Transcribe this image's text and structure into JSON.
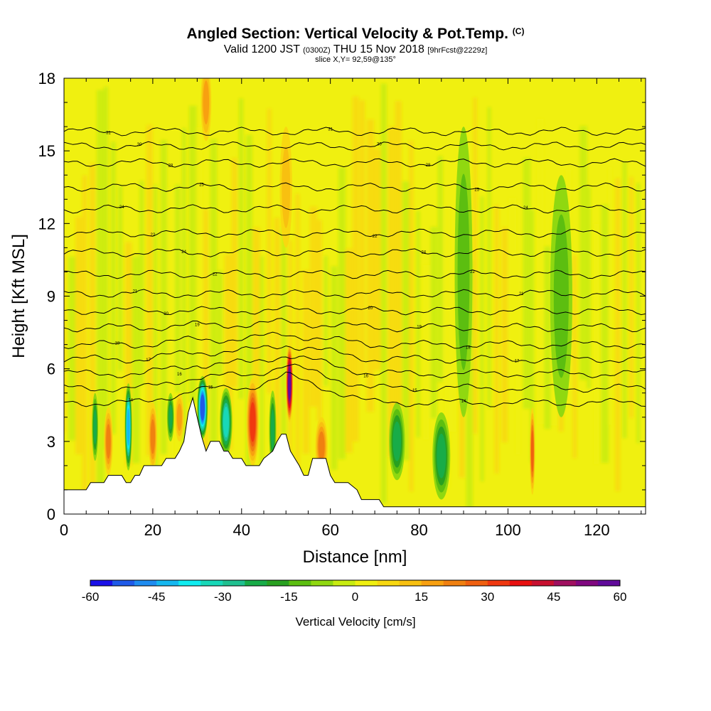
{
  "chart_data": {
    "type": "heatmap",
    "title": {
      "main": "Angled Section: Vertical Velocity & Pot.Temp.",
      "main_suffix": "(C)",
      "valid_a": "Valid 1200 JST",
      "valid_b": "(0300Z)",
      "valid_c": "THU 15 Nov 2018",
      "valid_d": "[9hrFcst@2229z]",
      "slice": "slice X,Y= 92,59@135°"
    },
    "xlabel": "Distance [nm]",
    "ylabel": "Height [Kft MSL]",
    "xlim": [
      0,
      131
    ],
    "ylim": [
      0,
      18
    ],
    "xticks": [
      0,
      20,
      40,
      60,
      80,
      100,
      120
    ],
    "yticks": [
      0,
      3,
      6,
      9,
      12,
      15,
      18
    ],
    "colorbar": {
      "label": "Vertical Velocity [cm/s]",
      "min": -60,
      "max": 60,
      "step": 5,
      "tick_labels": [
        -60,
        -45,
        -30,
        -15,
        0,
        15,
        30,
        45,
        60
      ],
      "colors": [
        "#1a10e8",
        "#1f5ae8",
        "#1e8cf0",
        "#16b8f0",
        "#10ecf0",
        "#18d8b8",
        "#20c090",
        "#18ac48",
        "#28a020",
        "#5cbe10",
        "#90d810",
        "#c8ec10",
        "#f0f010",
        "#f8d810",
        "#f8c010",
        "#f8a010",
        "#f08010",
        "#f06010",
        "#f03810",
        "#e81010",
        "#c81030",
        "#a01060",
        "#800880",
        "#600a9a"
      ]
    },
    "terrain": [
      [
        0,
        1.0
      ],
      [
        5,
        1.0
      ],
      [
        6,
        1.3
      ],
      [
        9,
        1.3
      ],
      [
        10,
        1.6
      ],
      [
        13,
        1.6
      ],
      [
        14,
        1.3
      ],
      [
        15,
        1.3
      ],
      [
        16,
        1.6
      ],
      [
        17,
        1.6
      ],
      [
        18,
        2.0
      ],
      [
        22,
        2.0
      ],
      [
        23,
        2.3
      ],
      [
        25,
        2.3
      ],
      [
        26,
        2.6
      ],
      [
        27,
        3.0
      ],
      [
        28,
        4.2
      ],
      [
        29,
        4.8
      ],
      [
        30,
        4.0
      ],
      [
        31,
        3.2
      ],
      [
        32,
        2.6
      ],
      [
        33,
        3.0
      ],
      [
        35,
        3.0
      ],
      [
        36,
        2.6
      ],
      [
        37,
        2.6
      ],
      [
        38,
        2.3
      ],
      [
        40,
        2.3
      ],
      [
        41,
        2.0
      ],
      [
        44,
        2.0
      ],
      [
        45,
        2.3
      ],
      [
        47,
        2.6
      ],
      [
        48,
        3.0
      ],
      [
        49,
        3.3
      ],
      [
        50,
        3.3
      ],
      [
        51,
        2.6
      ],
      [
        52,
        2.3
      ],
      [
        53,
        2.0
      ],
      [
        54,
        1.6
      ],
      [
        55,
        1.6
      ],
      [
        56,
        2.3
      ],
      [
        59,
        2.3
      ],
      [
        60,
        1.6
      ],
      [
        61,
        1.3
      ],
      [
        64,
        1.3
      ],
      [
        66,
        1.0
      ],
      [
        67,
        0.6
      ],
      [
        71,
        0.6
      ],
      [
        72,
        0.3
      ],
      [
        131,
        0.3
      ]
    ],
    "updrafts": [
      {
        "x": 10,
        "z": 3.0,
        "w": 22,
        "rx": 1.0,
        "rz": 1.4
      },
      {
        "x": 20,
        "z": 3.2,
        "w": 18,
        "rx": 1.0,
        "rz": 1.4
      },
      {
        "x": 26,
        "z": 4.0,
        "w": 14,
        "rx": 1.0,
        "rz": 1.0
      },
      {
        "x": 42.5,
        "z": 3.8,
        "w": 32,
        "rx": 1.4,
        "rz": 1.8
      },
      {
        "x": 50.8,
        "z": 5.4,
        "w": 55,
        "rx": 0.8,
        "rz": 1.6
      },
      {
        "x": 58,
        "z": 2.8,
        "w": 20,
        "rx": 1.4,
        "rz": 1.2
      },
      {
        "x": 105.5,
        "z": 2.6,
        "w": 25,
        "rx": 0.6,
        "rz": 1.8
      },
      {
        "x": 32,
        "z": 17.0,
        "w": 14,
        "rx": 1.2,
        "rz": 1.6
      },
      {
        "x": 50,
        "z": 13.5,
        "w": 12,
        "rx": 1.4,
        "rz": 2.5
      }
    ],
    "downdrafts": [
      {
        "x": 7,
        "z": 3.6,
        "w": -22,
        "rx": 0.7,
        "rz": 1.4
      },
      {
        "x": 14.5,
        "z": 3.6,
        "w": -38,
        "rx": 0.8,
        "rz": 1.8
      },
      {
        "x": 24,
        "z": 4.0,
        "w": -22,
        "rx": 0.8,
        "rz": 1.0
      },
      {
        "x": 31.2,
        "z": 4.4,
        "w": -48,
        "rx": 1.2,
        "rz": 1.3
      },
      {
        "x": 36.5,
        "z": 3.8,
        "w": -32,
        "rx": 1.4,
        "rz": 1.4
      },
      {
        "x": 47,
        "z": 3.5,
        "w": -20,
        "rx": 0.8,
        "rz": 1.6
      },
      {
        "x": 75,
        "z": 3.0,
        "w": -22,
        "rx": 1.8,
        "rz": 1.6
      },
      {
        "x": 85,
        "z": 2.4,
        "w": -18,
        "rx": 2.0,
        "rz": 1.8
      },
      {
        "x": 90,
        "z": 10.0,
        "w": -12,
        "rx": 2.0,
        "rz": 6.0
      },
      {
        "x": 112,
        "z": 9.0,
        "w": -10,
        "rx": 2.5,
        "rz": 5.0
      }
    ],
    "isentropes": [
      {
        "z": 15.8,
        "label": "31"
      },
      {
        "z": 15.2,
        "label": "30"
      },
      {
        "z": 14.5,
        "label": "28"
      },
      {
        "z": 13.5,
        "label": "25"
      },
      {
        "z": 12.6,
        "label": "24"
      },
      {
        "z": 11.6,
        "label": "22"
      },
      {
        "z": 10.8,
        "label": "24"
      },
      {
        "z": 9.9,
        "label": "22"
      },
      {
        "z": 9.1,
        "label": "21"
      },
      {
        "z": 8.4,
        "label": "20"
      },
      {
        "z": 7.7,
        "label": "19"
      },
      {
        "z": 7.0,
        "label": "18"
      },
      {
        "z": 6.4,
        "label": "17"
      },
      {
        "z": 5.8,
        "label": "16"
      },
      {
        "z": 5.2,
        "label": "15"
      },
      {
        "z": 4.6,
        "label": "14"
      }
    ]
  }
}
